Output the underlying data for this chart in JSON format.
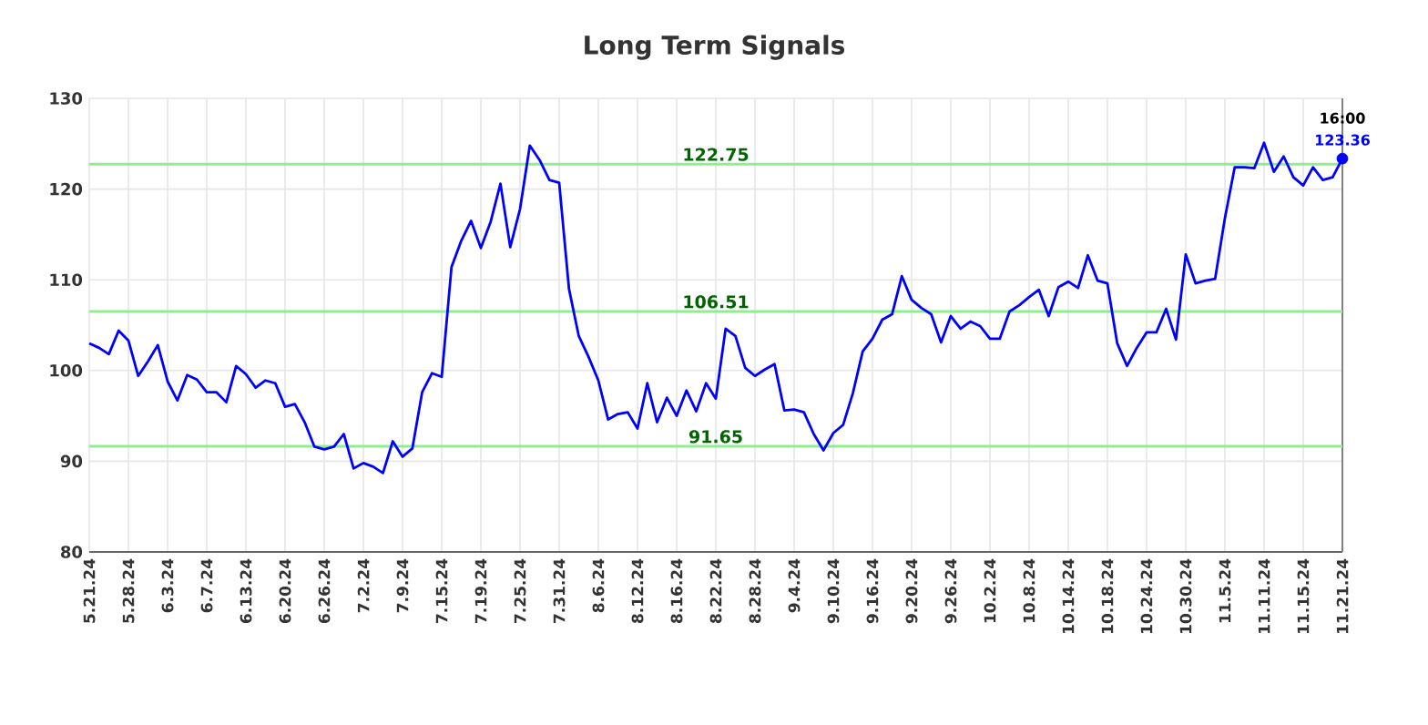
{
  "chart_data": {
    "type": "line",
    "title": "Long Term Signals",
    "categories": [
      "5.21.24",
      null,
      null,
      null,
      "5.28.24",
      null,
      null,
      null,
      "6.3.24",
      null,
      null,
      null,
      "6.7.24",
      null,
      null,
      null,
      "6.13.24",
      null,
      null,
      null,
      "6.20.24",
      null,
      null,
      null,
      "6.26.24",
      null,
      null,
      null,
      "7.2.24",
      null,
      null,
      null,
      "7.9.24",
      null,
      null,
      null,
      "7.15.24",
      null,
      null,
      null,
      "7.19.24",
      null,
      null,
      null,
      "7.25.24",
      null,
      null,
      null,
      "7.31.24",
      null,
      null,
      null,
      "8.6.24",
      null,
      null,
      null,
      "8.12.24",
      null,
      null,
      null,
      "8.16.24",
      null,
      null,
      null,
      "8.22.24",
      null,
      null,
      null,
      "8.28.24",
      null,
      null,
      null,
      "9.4.24",
      null,
      null,
      null,
      "9.10.24",
      null,
      null,
      null,
      "9.16.24",
      null,
      null,
      null,
      "9.20.24",
      null,
      null,
      null,
      "9.26.24",
      null,
      null,
      null,
      "10.2.24",
      null,
      null,
      null,
      "10.8.24",
      null,
      null,
      null,
      "10.14.24",
      null,
      null,
      null,
      "10.18.24",
      null,
      null,
      null,
      "10.24.24",
      null,
      null,
      null,
      "10.30.24",
      null,
      null,
      null,
      "11.5.24",
      null,
      null,
      null,
      "11.11.24",
      null,
      null,
      null,
      "11.15.24",
      null,
      null,
      null,
      "11.21.24"
    ],
    "series": [
      {
        "type": "line",
        "color": "#0000ff",
        "values": [
          103,
          102.5,
          101.8,
          104.4,
          103.3,
          99.4,
          101,
          102.8,
          98.8,
          96.7,
          99.5,
          99,
          97.6,
          97.6,
          96.5,
          100.5,
          99.6,
          98.1,
          98.9,
          98.6,
          96,
          96.3,
          94.3,
          91.6,
          91.3,
          91.6,
          93,
          89.2,
          89.8,
          89.4,
          88.7,
          92.2,
          90.5,
          91.4,
          97.6,
          99.7,
          99.3,
          111.4,
          114.3,
          116.5,
          113.5,
          116.4,
          120.6,
          113.6,
          117.8,
          124.8,
          123.2,
          121,
          120.7,
          109,
          103.8,
          101.5,
          98.9,
          94.6,
          95.2,
          95.4,
          93.6,
          98.6,
          94.3,
          97,
          95,
          97.8,
          95.5,
          98.6,
          96.9,
          104.6,
          103.8,
          100.3,
          99.4,
          100.1,
          100.7,
          95.6,
          95.7,
          95.4,
          93,
          91.2,
          93.1,
          94,
          97.5,
          102.1,
          103.5,
          105.6,
          106.2,
          110.4,
          107.8,
          106.9,
          106.2,
          103.1,
          106,
          104.6,
          105.4,
          104.9,
          103.5,
          103.5,
          106.5,
          107.2,
          108.1,
          108.9,
          106,
          109.2,
          109.8,
          109.1,
          112.7,
          109.9,
          109.6,
          103,
          100.5,
          102.5,
          104.2,
          104.2,
          106.8,
          103.4,
          112.8,
          109.6,
          109.9,
          110.1,
          116.8,
          122.4,
          122.4,
          122.3,
          125.1,
          121.9,
          123.6,
          121.3,
          120.4,
          122.4,
          121,
          121.3,
          123.36
        ]
      },
      {
        "type": "scatter",
        "color": "#0000ff",
        "marker": "circle",
        "x": [
          "11.21.24"
        ],
        "values": [
          123.36
        ]
      }
    ],
    "ylim": [
      80,
      130
    ],
    "yticks": [
      80,
      90,
      100,
      110,
      120,
      130
    ],
    "grid": true,
    "ref_lines": [
      {
        "axis": "y",
        "value": 122.75,
        "label": "122.75",
        "color": "#90ee90"
      },
      {
        "axis": "y",
        "value": 106.51,
        "label": "106.51",
        "color": "#90ee90"
      },
      {
        "axis": "y",
        "value": 91.65,
        "label": "91.65",
        "color": "#90ee90"
      }
    ],
    "annotations": [
      {
        "text": "16:00",
        "x": "11.21.24",
        "y": 123.36
      },
      {
        "text": "123.36",
        "x": "11.21.24",
        "y": 123.36
      }
    ]
  }
}
